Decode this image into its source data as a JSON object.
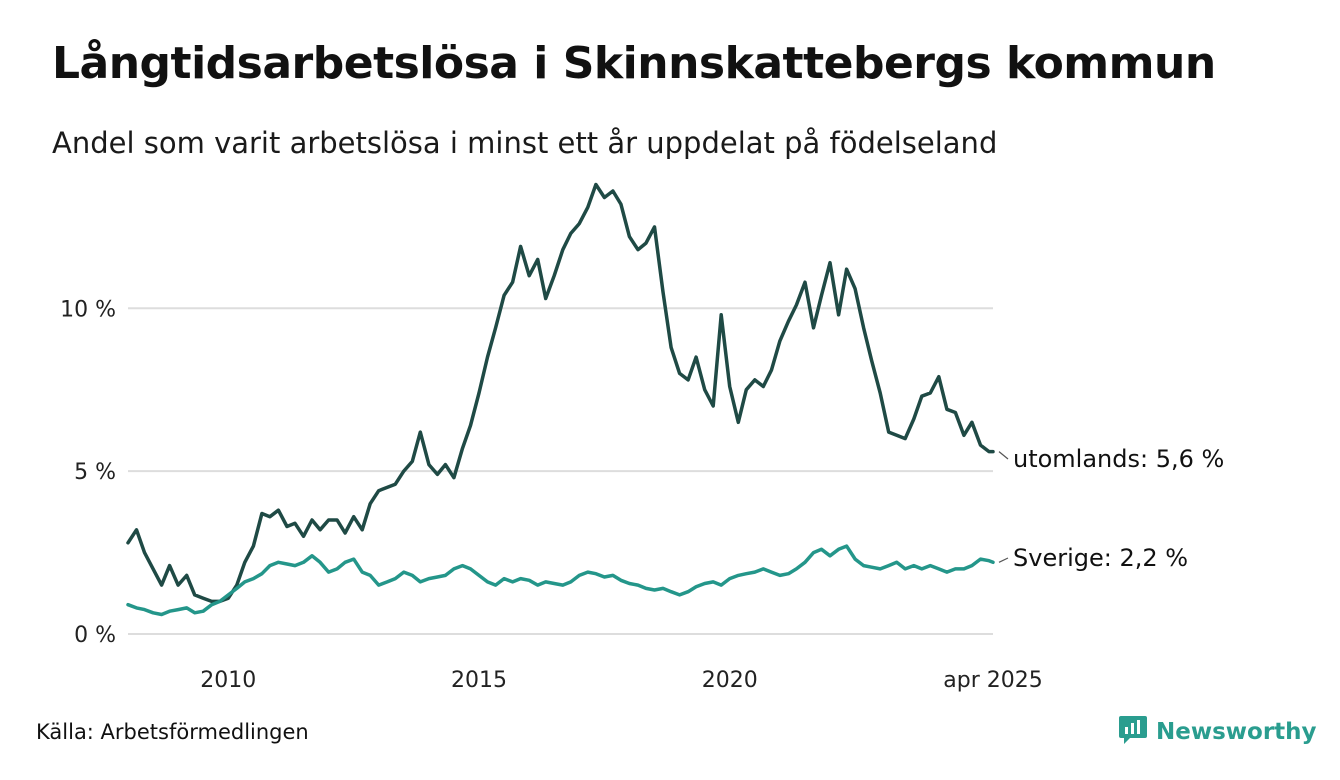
{
  "title": "Långtidsarbetslösa i Skinnskattebergs kommun",
  "subtitle": "Andel som varit arbetslösa i minst ett år uppdelat på födelseland",
  "source": "Källa: Arbetsförmedlingen",
  "brand": {
    "name": "Newsworthy",
    "icon": "newsworthy-logo-icon"
  },
  "colors": {
    "utomlands": "#1f4a45",
    "sverige": "#24968a",
    "grid": "#dddddd",
    "brand": "#2a9d8f"
  },
  "chart_data": {
    "type": "line",
    "title": "Långtidsarbetslösa i Skinnskattebergs kommun",
    "subtitle": "Andel som varit arbetslösa i minst ett år uppdelat på födelseland",
    "xlim": [
      2008.0,
      2025.25
    ],
    "ylim": [
      0,
      14
    ],
    "yticks": [
      {
        "value": 0,
        "label": "0 %"
      },
      {
        "value": 5,
        "label": "5 %"
      },
      {
        "value": 10,
        "label": "10 %"
      }
    ],
    "xticks": [
      {
        "value": 2010.0,
        "label": "2010"
      },
      {
        "value": 2015.0,
        "label": "2015"
      },
      {
        "value": 2020.0,
        "label": "2020"
      },
      {
        "value": 2025.25,
        "label": "apr 2025"
      }
    ],
    "grid": true,
    "series": [
      {
        "key": "utomlands",
        "name": "utomlands",
        "end_label": "utomlands: 5,6 %",
        "color": "#1f4a45",
        "points": [
          [
            2008.0,
            2.8
          ],
          [
            2008.17,
            3.2
          ],
          [
            2008.33,
            2.5
          ],
          [
            2008.5,
            2.0
          ],
          [
            2008.67,
            1.5
          ],
          [
            2008.83,
            2.1
          ],
          [
            2009.0,
            1.5
          ],
          [
            2009.17,
            1.8
          ],
          [
            2009.33,
            1.2
          ],
          [
            2009.5,
            1.1
          ],
          [
            2009.67,
            1.0
          ],
          [
            2009.83,
            1.0
          ],
          [
            2010.0,
            1.1
          ],
          [
            2010.17,
            1.5
          ],
          [
            2010.33,
            2.2
          ],
          [
            2010.5,
            2.7
          ],
          [
            2010.67,
            3.7
          ],
          [
            2010.83,
            3.6
          ],
          [
            2011.0,
            3.8
          ],
          [
            2011.17,
            3.3
          ],
          [
            2011.33,
            3.4
          ],
          [
            2011.5,
            3.0
          ],
          [
            2011.67,
            3.5
          ],
          [
            2011.83,
            3.2
          ],
          [
            2012.0,
            3.5
          ],
          [
            2012.17,
            3.5
          ],
          [
            2012.33,
            3.1
          ],
          [
            2012.5,
            3.6
          ],
          [
            2012.67,
            3.2
          ],
          [
            2012.83,
            4.0
          ],
          [
            2013.0,
            4.4
          ],
          [
            2013.17,
            4.5
          ],
          [
            2013.33,
            4.6
          ],
          [
            2013.5,
            5.0
          ],
          [
            2013.67,
            5.3
          ],
          [
            2013.83,
            6.2
          ],
          [
            2014.0,
            5.2
          ],
          [
            2014.17,
            4.9
          ],
          [
            2014.33,
            5.2
          ],
          [
            2014.5,
            4.8
          ],
          [
            2014.67,
            5.7
          ],
          [
            2014.83,
            6.4
          ],
          [
            2015.0,
            7.4
          ],
          [
            2015.17,
            8.5
          ],
          [
            2015.33,
            9.4
          ],
          [
            2015.5,
            10.4
          ],
          [
            2015.67,
            10.8
          ],
          [
            2015.83,
            11.9
          ],
          [
            2016.0,
            11.0
          ],
          [
            2016.17,
            11.5
          ],
          [
            2016.33,
            10.3
          ],
          [
            2016.5,
            11.0
          ],
          [
            2016.67,
            11.8
          ],
          [
            2016.83,
            12.3
          ],
          [
            2017.0,
            12.6
          ],
          [
            2017.17,
            13.1
          ],
          [
            2017.33,
            13.8
          ],
          [
            2017.5,
            13.4
          ],
          [
            2017.67,
            13.6
          ],
          [
            2017.83,
            13.2
          ],
          [
            2018.0,
            12.2
          ],
          [
            2018.17,
            11.8
          ],
          [
            2018.33,
            12.0
          ],
          [
            2018.5,
            12.5
          ],
          [
            2018.67,
            10.5
          ],
          [
            2018.83,
            8.8
          ],
          [
            2019.0,
            8.0
          ],
          [
            2019.17,
            7.8
          ],
          [
            2019.33,
            8.5
          ],
          [
            2019.5,
            7.5
          ],
          [
            2019.67,
            7.0
          ],
          [
            2019.83,
            9.8
          ],
          [
            2020.0,
            7.6
          ],
          [
            2020.17,
            6.5
          ],
          [
            2020.33,
            7.5
          ],
          [
            2020.5,
            7.8
          ],
          [
            2020.67,
            7.6
          ],
          [
            2020.83,
            8.1
          ],
          [
            2021.0,
            9.0
          ],
          [
            2021.17,
            9.6
          ],
          [
            2021.33,
            10.1
          ],
          [
            2021.5,
            10.8
          ],
          [
            2021.67,
            9.4
          ],
          [
            2021.83,
            10.4
          ],
          [
            2022.0,
            11.4
          ],
          [
            2022.17,
            9.8
          ],
          [
            2022.33,
            11.2
          ],
          [
            2022.5,
            10.6
          ],
          [
            2022.67,
            9.4
          ],
          [
            2022.83,
            8.4
          ],
          [
            2023.0,
            7.4
          ],
          [
            2023.17,
            6.2
          ],
          [
            2023.33,
            6.1
          ],
          [
            2023.5,
            6.0
          ],
          [
            2023.67,
            6.6
          ],
          [
            2023.83,
            7.3
          ],
          [
            2024.0,
            7.4
          ],
          [
            2024.17,
            7.9
          ],
          [
            2024.33,
            6.9
          ],
          [
            2024.5,
            6.8
          ],
          [
            2024.67,
            6.1
          ],
          [
            2024.83,
            6.5
          ],
          [
            2025.0,
            5.8
          ],
          [
            2025.17,
            5.6
          ],
          [
            2025.25,
            5.6
          ]
        ]
      },
      {
        "key": "sverige",
        "name": "Sverige",
        "end_label": "Sverige: 2,2 %",
        "color": "#24968a",
        "points": [
          [
            2008.0,
            0.9
          ],
          [
            2008.17,
            0.8
          ],
          [
            2008.33,
            0.75
          ],
          [
            2008.5,
            0.65
          ],
          [
            2008.67,
            0.6
          ],
          [
            2008.83,
            0.7
          ],
          [
            2009.0,
            0.75
          ],
          [
            2009.17,
            0.8
          ],
          [
            2009.33,
            0.65
          ],
          [
            2009.5,
            0.7
          ],
          [
            2009.67,
            0.9
          ],
          [
            2009.83,
            1.0
          ],
          [
            2010.0,
            1.2
          ],
          [
            2010.17,
            1.4
          ],
          [
            2010.33,
            1.6
          ],
          [
            2010.5,
            1.7
          ],
          [
            2010.67,
            1.85
          ],
          [
            2010.83,
            2.1
          ],
          [
            2011.0,
            2.2
          ],
          [
            2011.17,
            2.15
          ],
          [
            2011.33,
            2.1
          ],
          [
            2011.5,
            2.2
          ],
          [
            2011.67,
            2.4
          ],
          [
            2011.83,
            2.2
          ],
          [
            2012.0,
            1.9
          ],
          [
            2012.17,
            2.0
          ],
          [
            2012.33,
            2.2
          ],
          [
            2012.5,
            2.3
          ],
          [
            2012.67,
            1.9
          ],
          [
            2012.83,
            1.8
          ],
          [
            2013.0,
            1.5
          ],
          [
            2013.17,
            1.6
          ],
          [
            2013.33,
            1.7
          ],
          [
            2013.5,
            1.9
          ],
          [
            2013.67,
            1.8
          ],
          [
            2013.83,
            1.6
          ],
          [
            2014.0,
            1.7
          ],
          [
            2014.17,
            1.75
          ],
          [
            2014.33,
            1.8
          ],
          [
            2014.5,
            2.0
          ],
          [
            2014.67,
            2.1
          ],
          [
            2014.83,
            2.0
          ],
          [
            2015.0,
            1.8
          ],
          [
            2015.17,
            1.6
          ],
          [
            2015.33,
            1.5
          ],
          [
            2015.5,
            1.7
          ],
          [
            2015.67,
            1.6
          ],
          [
            2015.83,
            1.7
          ],
          [
            2016.0,
            1.65
          ],
          [
            2016.17,
            1.5
          ],
          [
            2016.33,
            1.6
          ],
          [
            2016.5,
            1.55
          ],
          [
            2016.67,
            1.5
          ],
          [
            2016.83,
            1.6
          ],
          [
            2017.0,
            1.8
          ],
          [
            2017.17,
            1.9
          ],
          [
            2017.33,
            1.85
          ],
          [
            2017.5,
            1.75
          ],
          [
            2017.67,
            1.8
          ],
          [
            2017.83,
            1.65
          ],
          [
            2018.0,
            1.55
          ],
          [
            2018.17,
            1.5
          ],
          [
            2018.33,
            1.4
          ],
          [
            2018.5,
            1.35
          ],
          [
            2018.67,
            1.4
          ],
          [
            2018.83,
            1.3
          ],
          [
            2019.0,
            1.2
          ],
          [
            2019.17,
            1.3
          ],
          [
            2019.33,
            1.45
          ],
          [
            2019.5,
            1.55
          ],
          [
            2019.67,
            1.6
          ],
          [
            2019.83,
            1.5
          ],
          [
            2020.0,
            1.7
          ],
          [
            2020.17,
            1.8
          ],
          [
            2020.33,
            1.85
          ],
          [
            2020.5,
            1.9
          ],
          [
            2020.67,
            2.0
          ],
          [
            2020.83,
            1.9
          ],
          [
            2021.0,
            1.8
          ],
          [
            2021.17,
            1.85
          ],
          [
            2021.33,
            2.0
          ],
          [
            2021.5,
            2.2
          ],
          [
            2021.67,
            2.5
          ],
          [
            2021.83,
            2.6
          ],
          [
            2022.0,
            2.4
          ],
          [
            2022.17,
            2.6
          ],
          [
            2022.33,
            2.7
          ],
          [
            2022.5,
            2.3
          ],
          [
            2022.67,
            2.1
          ],
          [
            2022.83,
            2.05
          ],
          [
            2023.0,
            2.0
          ],
          [
            2023.17,
            2.1
          ],
          [
            2023.33,
            2.2
          ],
          [
            2023.5,
            2.0
          ],
          [
            2023.67,
            2.1
          ],
          [
            2023.83,
            2.0
          ],
          [
            2024.0,
            2.1
          ],
          [
            2024.17,
            2.0
          ],
          [
            2024.33,
            1.9
          ],
          [
            2024.5,
            2.0
          ],
          [
            2024.67,
            2.0
          ],
          [
            2024.83,
            2.1
          ],
          [
            2025.0,
            2.3
          ],
          [
            2025.17,
            2.25
          ],
          [
            2025.25,
            2.2
          ]
        ]
      }
    ]
  }
}
